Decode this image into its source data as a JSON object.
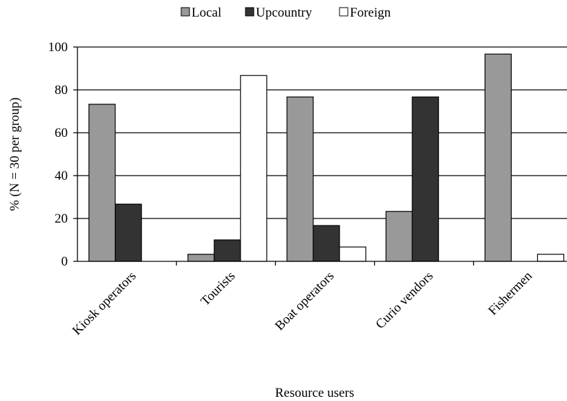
{
  "chart_data": {
    "type": "bar",
    "title": "",
    "xlabel": "Resource users",
    "ylabel": "% (N = 30 per group)",
    "ylim": [
      0,
      100
    ],
    "yticks": [
      0,
      20,
      40,
      60,
      80,
      100
    ],
    "grid": true,
    "legend_position": "top",
    "categories": [
      "Kiosk operators",
      "Tourists",
      "Boat operators",
      "Curio vendors",
      "Fishermen"
    ],
    "series": [
      {
        "name": "Local",
        "color": "#999999",
        "values": [
          73.3,
          3.3,
          76.7,
          23.3,
          96.7
        ]
      },
      {
        "name": "Upcountry",
        "color": "#333333",
        "values": [
          26.7,
          10.0,
          16.7,
          76.7,
          0
        ]
      },
      {
        "name": "Foreign",
        "color": "#ffffff",
        "values": [
          0,
          86.7,
          6.7,
          0,
          3.3
        ]
      }
    ]
  }
}
